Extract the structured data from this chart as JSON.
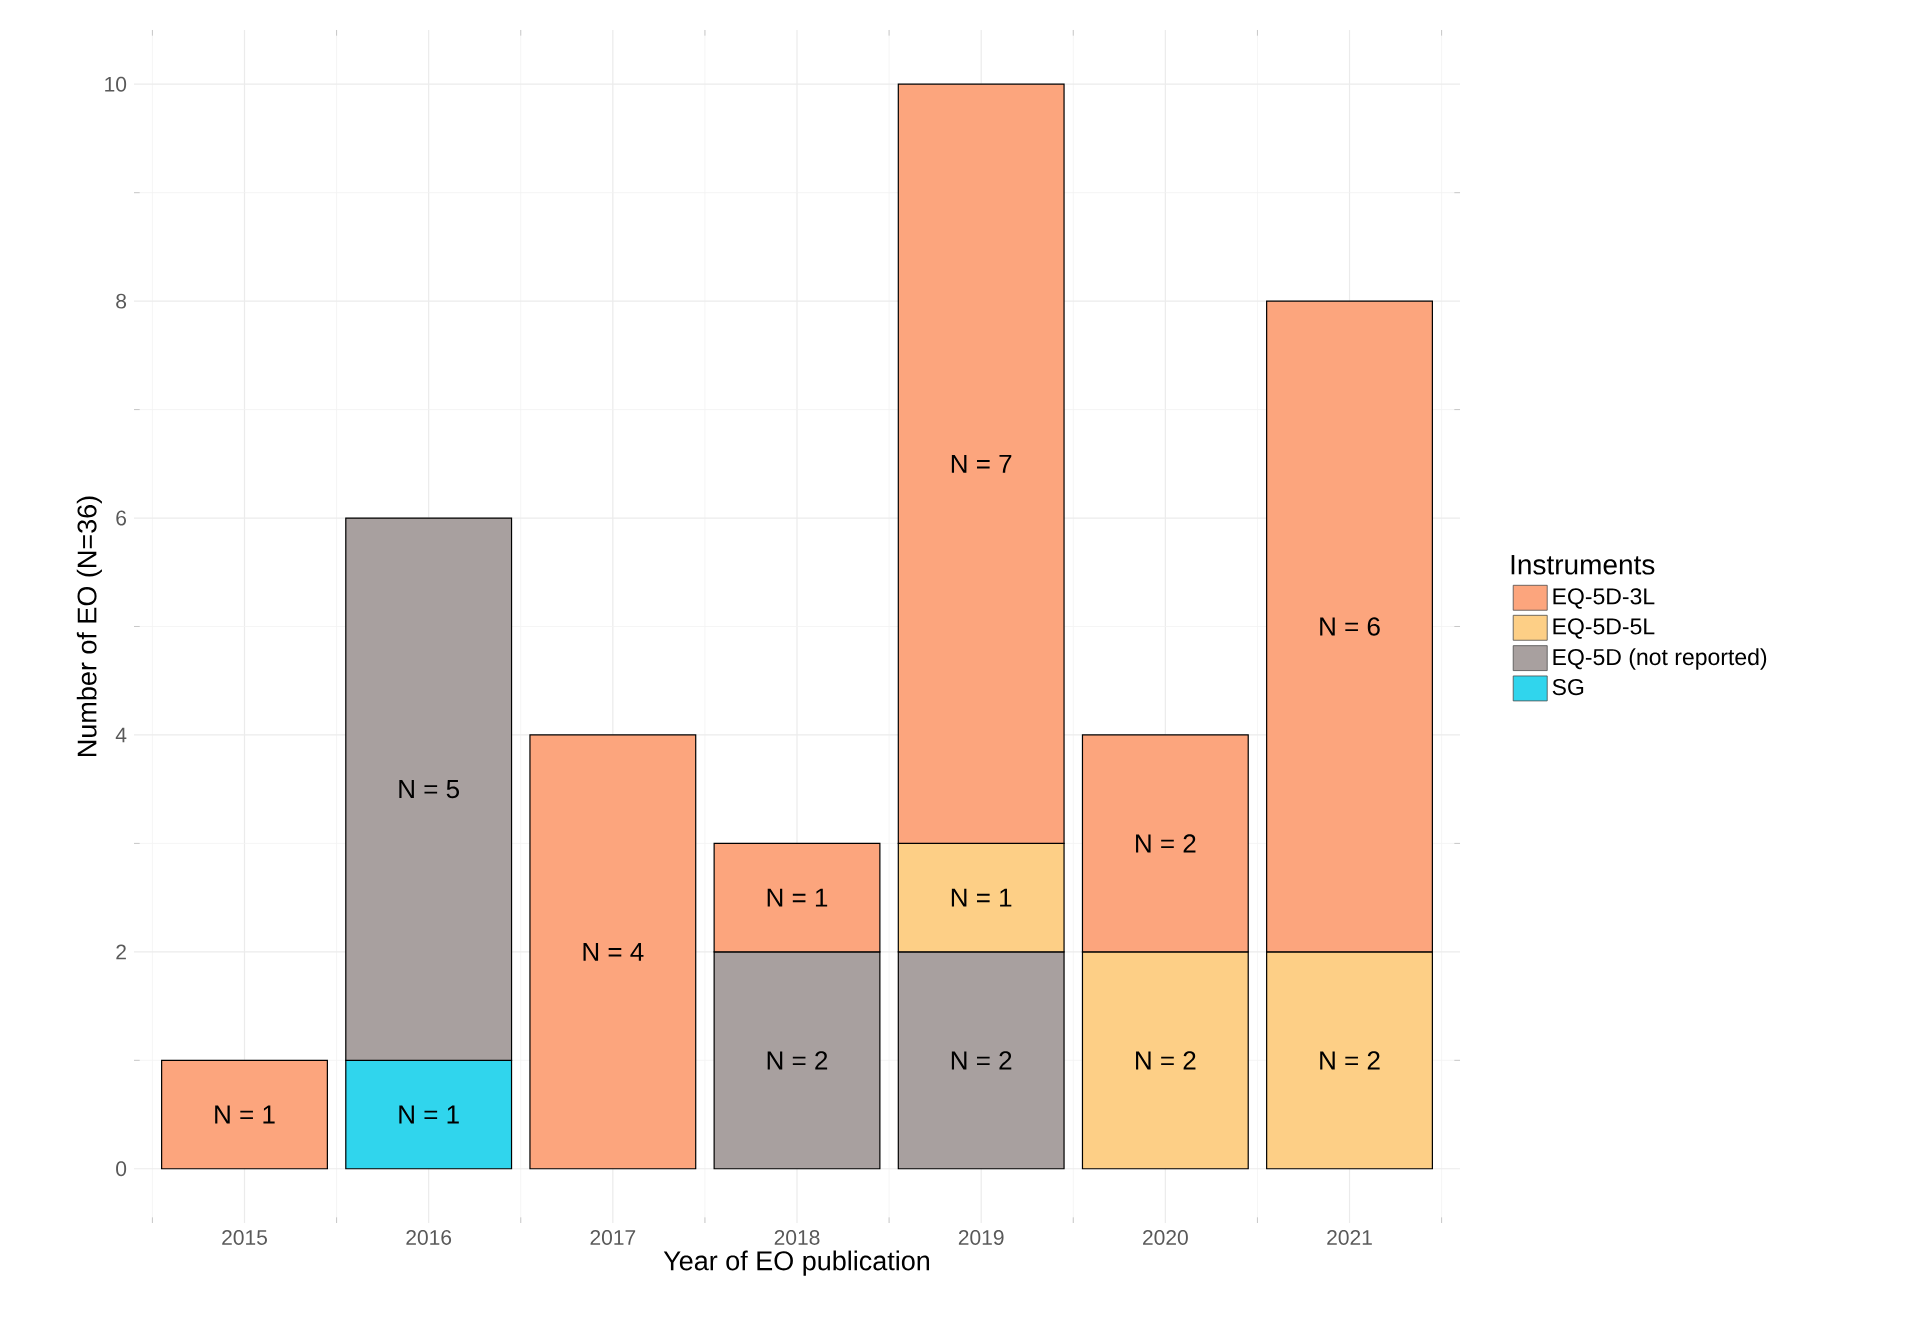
{
  "chart_data": {
    "type": "bar",
    "stacked": true,
    "xlabel": "Year of EO publication",
    "ylabel": "Number of EO (N=36)",
    "legend_title": "Instruments",
    "legend": "right",
    "grid": true,
    "categories": [
      "2015",
      "2016",
      "2017",
      "2018",
      "2019",
      "2020",
      "2021"
    ],
    "ylim": [
      -0.5,
      10.5
    ],
    "yticks": [
      0,
      2,
      4,
      6,
      8,
      10
    ],
    "series": [
      {
        "name": "SG",
        "color": "#30d5ed",
        "values": [
          null,
          1,
          null,
          null,
          null,
          null,
          null
        ],
        "value_labels": [
          null,
          "N = 1",
          null,
          null,
          null,
          null,
          null
        ]
      },
      {
        "name": "EQ-5D (not reported)",
        "color": "#a8a09f",
        "values": [
          null,
          5,
          null,
          2,
          2,
          null,
          null
        ],
        "value_labels": [
          null,
          "N = 5",
          null,
          "N = 2",
          "N = 2",
          null,
          null
        ]
      },
      {
        "name": "EQ-5D-5L",
        "color": "#fdcf86",
        "values": [
          null,
          null,
          null,
          null,
          1,
          2,
          2
        ],
        "value_labels": [
          null,
          null,
          null,
          null,
          "N = 1",
          "N = 2",
          "N = 2"
        ]
      },
      {
        "name": "EQ-5D-3L",
        "color": "#fca57d",
        "values": [
          1,
          null,
          4,
          1,
          7,
          2,
          6
        ],
        "value_labels": [
          "N = 1",
          null,
          "N = 4",
          "N = 1",
          "N = 7",
          "N = 2",
          "N = 6"
        ]
      }
    ]
  }
}
